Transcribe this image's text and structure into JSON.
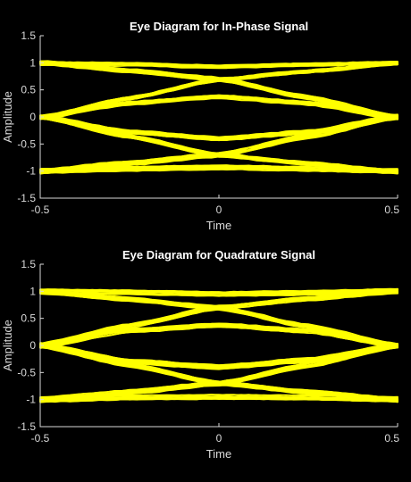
{
  "chart_data": [
    {
      "type": "line",
      "title": "Eye Diagram for In-Phase Signal",
      "xlabel": "Time",
      "ylabel": "Amplitude",
      "xlim": [
        -0.5,
        0.5
      ],
      "ylim": [
        -1.5,
        1.5
      ],
      "xticks": [
        -0.5,
        0,
        0.5
      ],
      "xtick_labels": [
        "-0.5",
        "0",
        "0.5"
      ],
      "yticks": [
        -1.5,
        -1,
        -0.5,
        0,
        0.5,
        1,
        1.5
      ],
      "ytick_labels": [
        "-1.5",
        "-1",
        "-0.5",
        "0",
        "0.5",
        "1",
        "1.5"
      ],
      "grid": false,
      "line_color": "#ffff00",
      "background": "#000000",
      "axis_color": "#d9d9d9",
      "x": [
        -0.5,
        -0.25,
        0,
        0.25,
        0.5
      ],
      "series": [
        {
          "values": [
            1.0,
            0.98,
            0.93,
            0.97,
            1.0
          ]
        },
        {
          "values": [
            1.0,
            0.85,
            0.7,
            0.36,
            0.0
          ]
        },
        {
          "values": [
            0.0,
            0.36,
            0.7,
            0.85,
            1.0
          ]
        },
        {
          "values": [
            0.0,
            0.26,
            0.38,
            0.26,
            0.0
          ]
        },
        {
          "values": [
            0.0,
            -0.28,
            -0.4,
            -0.28,
            0.0
          ]
        },
        {
          "values": [
            0.0,
            -0.36,
            -0.7,
            -0.85,
            -1.0
          ]
        },
        {
          "values": [
            -1.0,
            -0.85,
            -0.7,
            -0.36,
            0.0
          ]
        },
        {
          "values": [
            -1.0,
            -0.96,
            -0.93,
            -0.96,
            -1.0
          ]
        }
      ]
    },
    {
      "type": "line",
      "title": "Eye Diagram for Quadrature Signal",
      "xlabel": "Time",
      "ylabel": "Amplitude",
      "xlim": [
        -0.5,
        0.5
      ],
      "ylim": [
        -1.5,
        1.5
      ],
      "xticks": [
        -0.5,
        0,
        0.5
      ],
      "xtick_labels": [
        "-0.5",
        "0",
        "0.5"
      ],
      "yticks": [
        -1.5,
        -1,
        -0.5,
        0,
        0.5,
        1,
        1.5
      ],
      "ytick_labels": [
        "-1.5",
        "-1",
        "-0.5",
        "0",
        "0.5",
        "1",
        "1.5"
      ],
      "grid": false,
      "line_color": "#ffff00",
      "background": "#000000",
      "axis_color": "#d9d9d9",
      "x": [
        -0.5,
        -0.25,
        0,
        0.25,
        0.5
      ],
      "series": [
        {
          "values": [
            1.0,
            0.98,
            0.95,
            0.97,
            1.0
          ]
        },
        {
          "values": [
            1.0,
            0.86,
            0.7,
            0.36,
            0.0
          ]
        },
        {
          "values": [
            0.0,
            0.36,
            0.7,
            0.86,
            1.0
          ]
        },
        {
          "values": [
            0.0,
            0.28,
            0.38,
            0.27,
            0.0
          ]
        },
        {
          "values": [
            0.0,
            -0.3,
            -0.4,
            -0.27,
            0.0
          ]
        },
        {
          "values": [
            0.0,
            -0.36,
            -0.7,
            -0.86,
            -1.0
          ]
        },
        {
          "values": [
            -1.0,
            -0.86,
            -0.7,
            -0.36,
            0.0
          ]
        },
        {
          "values": [
            -1.0,
            -0.96,
            -0.95,
            -0.96,
            -1.0
          ]
        }
      ]
    }
  ]
}
